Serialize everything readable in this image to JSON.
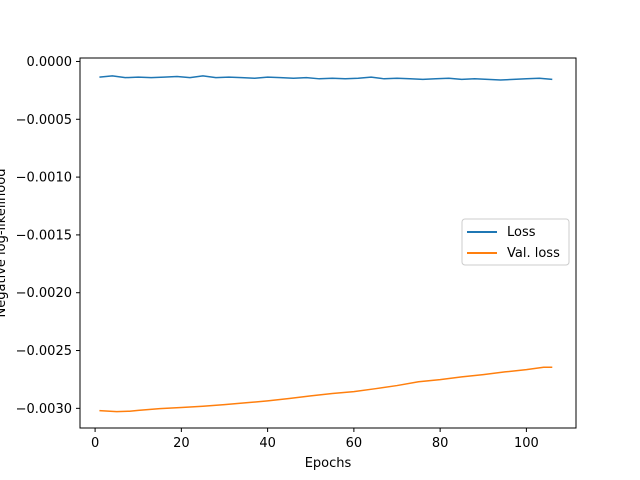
{
  "chart_data": {
    "type": "line",
    "xlabel": "Epochs",
    "ylabel": "Negative log-likelihood",
    "xlim": [
      -3.5,
      111.5
    ],
    "ylim": [
      -0.00317,
      3e-05
    ],
    "xticks": [
      0,
      20,
      40,
      60,
      80,
      100
    ],
    "xtick_labels": [
      "0",
      "20",
      "40",
      "60",
      "80",
      "100"
    ],
    "yticks": [
      0,
      -0.0005,
      -0.001,
      -0.0015,
      -0.002,
      -0.0025,
      -0.003
    ],
    "ytick_labels": [
      "0.0000",
      "−0.0005",
      "−0.0010",
      "−0.0015",
      "−0.0020",
      "−0.0025",
      "−0.0030"
    ],
    "grid": false,
    "legend_position": "center-right",
    "series": [
      {
        "name": "Loss",
        "color": "#1f77b4",
        "x": [
          1,
          4,
          7,
          10,
          13,
          16,
          19,
          22,
          25,
          28,
          31,
          34,
          37,
          40,
          43,
          46,
          49,
          52,
          55,
          58,
          61,
          64,
          67,
          70,
          73,
          76,
          79,
          82,
          85,
          88,
          91,
          94,
          97,
          100,
          103,
          106
        ],
        "values": [
          -0.000135,
          -0.000125,
          -0.00014,
          -0.000135,
          -0.00014,
          -0.000135,
          -0.00013,
          -0.00014,
          -0.000125,
          -0.00014,
          -0.000135,
          -0.00014,
          -0.000145,
          -0.000135,
          -0.00014,
          -0.000145,
          -0.00014,
          -0.00015,
          -0.000145,
          -0.00015,
          -0.000145,
          -0.000135,
          -0.00015,
          -0.000145,
          -0.00015,
          -0.000155,
          -0.00015,
          -0.000145,
          -0.000155,
          -0.00015,
          -0.000155,
          -0.00016,
          -0.000155,
          -0.00015,
          -0.000145,
          -0.000155
        ]
      },
      {
        "name": "Val. loss",
        "color": "#ff7f0e",
        "x": [
          1,
          5,
          8,
          10,
          15,
          20,
          25,
          30,
          35,
          40,
          45,
          50,
          55,
          60,
          65,
          70,
          75,
          80,
          85,
          90,
          95,
          100,
          104,
          106
        ],
        "values": [
          -0.00302,
          -0.003028,
          -0.003025,
          -0.003018,
          -0.003002,
          -0.002993,
          -0.002982,
          -0.002968,
          -0.002952,
          -0.002935,
          -0.002915,
          -0.002892,
          -0.002872,
          -0.002855,
          -0.00283,
          -0.002803,
          -0.00277,
          -0.002752,
          -0.002728,
          -0.002708,
          -0.002685,
          -0.002665,
          -0.002645,
          -0.002645
        ]
      }
    ]
  }
}
